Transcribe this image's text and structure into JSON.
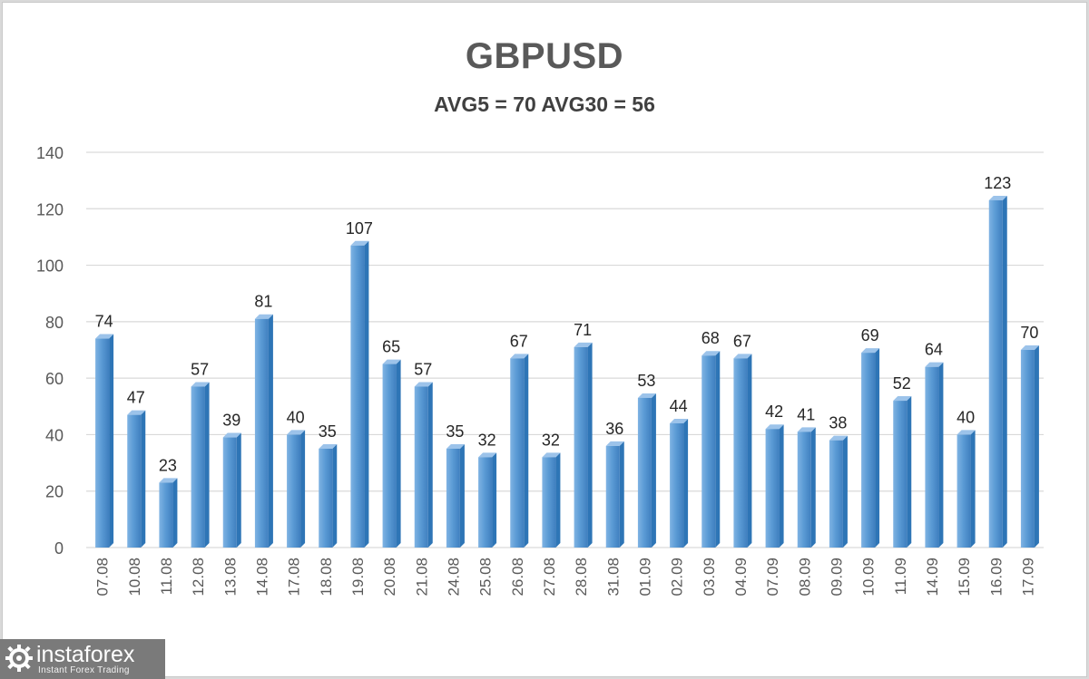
{
  "chart_data": {
    "type": "bar",
    "title": "GBPUSD",
    "subtitle": "AVG5 = 70 AVG30 = 56",
    "categories": [
      "07.08",
      "10.08",
      "11.08",
      "12.08",
      "13.08",
      "14.08",
      "17.08",
      "18.08",
      "19.08",
      "20.08",
      "21.08",
      "24.08",
      "25.08",
      "26.08",
      "27.08",
      "28.08",
      "31.08",
      "01.09",
      "02.09",
      "03.09",
      "04.09",
      "07.09",
      "08.09",
      "09.09",
      "10.09",
      "11.09",
      "14.09",
      "15.09",
      "16.09",
      "17.09"
    ],
    "values": [
      74,
      47,
      23,
      57,
      39,
      81,
      40,
      35,
      107,
      65,
      57,
      35,
      32,
      67,
      32,
      71,
      36,
      53,
      44,
      68,
      67,
      42,
      41,
      38,
      69,
      52,
      64,
      40,
      123,
      70
    ],
    "ylim": [
      0,
      140
    ],
    "yticks": [
      0,
      20,
      40,
      60,
      80,
      100,
      120,
      140
    ],
    "grid": true,
    "legend": "none",
    "bar_color": "#5b9bd5",
    "bar_color_dark": "#2e75b6"
  },
  "watermark": {
    "name": "instaforex",
    "tagline": "Instant Forex Trading"
  }
}
